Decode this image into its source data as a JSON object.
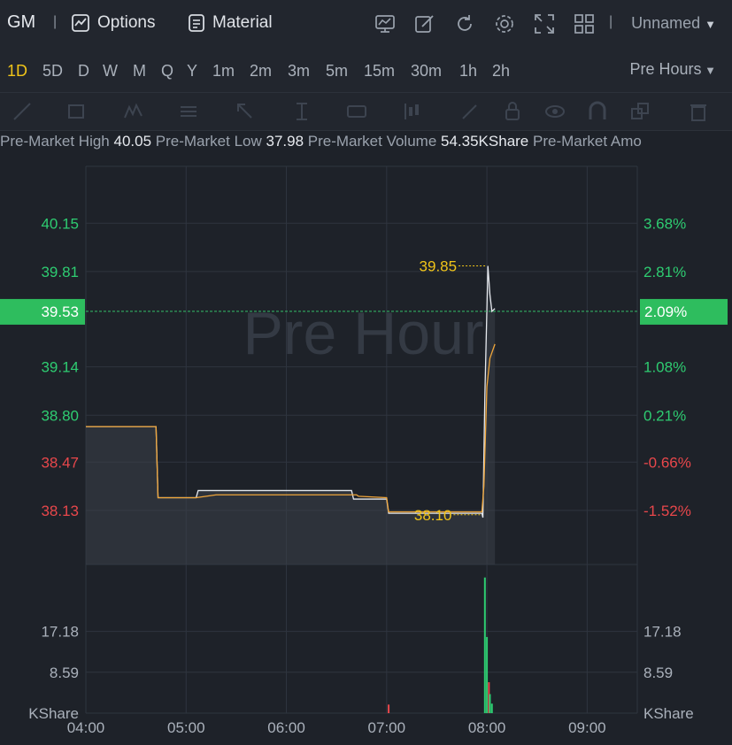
{
  "header": {
    "symbol": "GM",
    "separator": "|",
    "options_label": "Options",
    "material_label": "Material",
    "layout_name": "Unnamed",
    "icons": [
      "chart-settings-icon",
      "draw-icon",
      "refresh-icon",
      "gear-icon",
      "fullscreen-icon",
      "grid-layout-icon"
    ]
  },
  "timeframes": {
    "items": [
      "1D",
      "5D",
      "D",
      "W",
      "M",
      "Q",
      "Y",
      "1m",
      "2m",
      "3m",
      "5m",
      "15m",
      "30m",
      "1h",
      "2h"
    ],
    "active": "1D",
    "session": "Pre Hours"
  },
  "drawing_tools": [
    "trend-line-icon",
    "rectangle-icon",
    "pattern-icon",
    "fib-icon",
    "arrow-icon",
    "measure-icon",
    "price-label-icon",
    "indicator-icon",
    "pen-icon",
    "lock-icon",
    "eye-icon",
    "magnet-icon",
    "layers-icon",
    "trash-icon"
  ],
  "stats": {
    "high_label": "Pre-Market High",
    "high_value": "40.05",
    "low_label": "Pre-Market Low",
    "low_value": "37.98",
    "volume_label": "Pre-Market Volume",
    "volume_value": "54.35KShare",
    "amount_label": "Pre-Market Amo"
  },
  "colors": {
    "up": "#2ecc71",
    "down": "#e8474b",
    "price_line": "#f0a63a",
    "annotation": "#f0c419",
    "current_price_bg": "#2ebd5e"
  },
  "chart_data": {
    "type": "line",
    "watermark": "Pre Hour",
    "x_ticks": [
      "04:00",
      "05:00",
      "06:00",
      "07:00",
      "08:00",
      "09:00"
    ],
    "x_range_hours": [
      4.0,
      9.5
    ],
    "y_ticks_price": [
      "40.15",
      "39.81",
      "39.14",
      "38.80",
      "38.47",
      "38.13"
    ],
    "y_ticks_percent": [
      "3.68%",
      "2.81%",
      "1.08%",
      "0.21%",
      "-0.66%",
      "-1.52%"
    ],
    "ylim": [
      37.75,
      40.55
    ],
    "current_price": "39.53",
    "current_percent": "2.09%",
    "high_marker": {
      "label": "39.85",
      "x": 8.0,
      "y": 39.85
    },
    "low_marker": {
      "label": "38.10",
      "x": 7.95,
      "y": 38.1
    },
    "series": [
      {
        "name": "",
        "points": [
          [
            4.0,
            38.72
          ],
          [
            4.7,
            38.72
          ],
          [
            4.72,
            38.22
          ],
          [
            5.1,
            38.22
          ],
          [
            5.12,
            38.27
          ],
          [
            5.6,
            38.27
          ],
          [
            5.62,
            38.27
          ],
          [
            6.65,
            38.27
          ],
          [
            6.67,
            38.21
          ],
          [
            7.0,
            38.21
          ],
          [
            7.02,
            38.11
          ],
          [
            7.95,
            38.11
          ],
          [
            7.96,
            38.08
          ],
          [
            7.98,
            38.95
          ],
          [
            8.01,
            39.85
          ],
          [
            8.03,
            39.65
          ],
          [
            8.05,
            39.53
          ],
          [
            8.08,
            39.55
          ]
        ]
      },
      {
        "name": "",
        "points": [
          [
            4.0,
            38.72
          ],
          [
            4.7,
            38.72
          ],
          [
            4.72,
            38.22
          ],
          [
            5.1,
            38.22
          ],
          [
            5.3,
            38.24
          ],
          [
            6.0,
            38.24
          ],
          [
            6.7,
            38.24
          ],
          [
            6.72,
            38.23
          ],
          [
            7.0,
            38.22
          ],
          [
            7.02,
            38.12
          ],
          [
            7.95,
            38.12
          ],
          [
            7.97,
            38.3
          ],
          [
            8.0,
            39.0
          ],
          [
            8.03,
            39.2
          ],
          [
            8.08,
            39.3
          ]
        ]
      }
    ],
    "volume": {
      "y_ticks": [
        "17.18",
        "8.59"
      ],
      "unit": "KShare",
      "ylim": [
        0,
        29
      ],
      "bars": [
        {
          "x": 7.02,
          "v": 1.8,
          "dir": "down"
        },
        {
          "x": 7.98,
          "v": 28.5,
          "dir": "up"
        },
        {
          "x": 8.0,
          "v": 16.0,
          "dir": "up"
        },
        {
          "x": 8.02,
          "v": 6.5,
          "dir": "down"
        },
        {
          "x": 8.03,
          "v": 4.0,
          "dir": "up"
        },
        {
          "x": 8.05,
          "v": 2.0,
          "dir": "up"
        }
      ]
    }
  }
}
